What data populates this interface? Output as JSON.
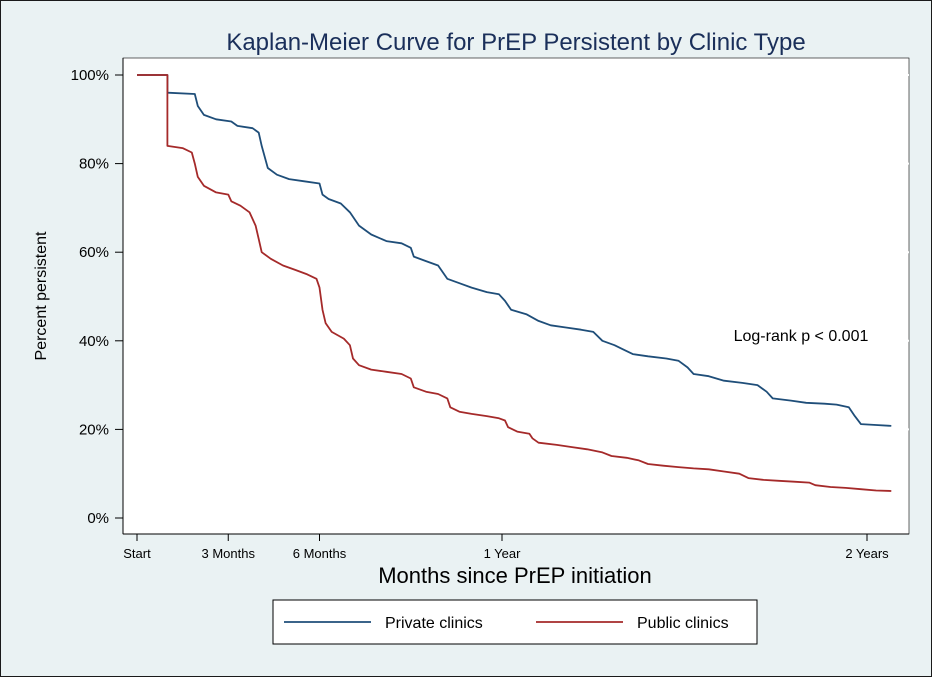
{
  "chart_data": {
    "type": "line",
    "title": "Kaplan-Meier Curve for PrEP Persistent by Clinic Type",
    "xlabel": "Months since PrEP initiation",
    "ylabel": "Percent persistent",
    "xlim": [
      0,
      25.5
    ],
    "ylim": [
      0,
      100
    ],
    "grid": true,
    "x_ticks": [
      {
        "value": 0,
        "label": "Start"
      },
      {
        "value": 3,
        "label": "3 Months"
      },
      {
        "value": 6,
        "label": "6 Months"
      },
      {
        "value": 12,
        "label": "1 Year"
      },
      {
        "value": 24,
        "label": "2 Years"
      }
    ],
    "y_ticks": [
      {
        "value": 0,
        "label": "0%"
      },
      {
        "value": 20,
        "label": "20%"
      },
      {
        "value": 40,
        "label": "40%"
      },
      {
        "value": 60,
        "label": "60%"
      },
      {
        "value": 80,
        "label": "80%"
      },
      {
        "value": 100,
        "label": "100%"
      }
    ],
    "annotation": "Log-rank p < 0.001",
    "legend_position": "bottom",
    "series": [
      {
        "name": "Private clinics",
        "color": "#1f4e79",
        "points": [
          [
            0,
            100
          ],
          [
            1,
            100
          ],
          [
            1,
            96
          ],
          [
            1.9,
            95.7
          ],
          [
            2.0,
            93
          ],
          [
            2.2,
            91
          ],
          [
            2.6,
            90
          ],
          [
            3.1,
            89.5
          ],
          [
            3.3,
            88.5
          ],
          [
            3.8,
            88
          ],
          [
            4.0,
            87
          ],
          [
            4.1,
            84
          ],
          [
            4.3,
            79
          ],
          [
            4.6,
            77.5
          ],
          [
            5.0,
            76.5
          ],
          [
            5.5,
            76
          ],
          [
            6.0,
            75.5
          ],
          [
            6.1,
            73
          ],
          [
            6.3,
            72
          ],
          [
            6.7,
            71
          ],
          [
            7.0,
            69
          ],
          [
            7.3,
            66
          ],
          [
            7.7,
            64
          ],
          [
            8.2,
            62.5
          ],
          [
            8.7,
            62
          ],
          [
            9.0,
            61
          ],
          [
            9.1,
            59
          ],
          [
            9.5,
            58
          ],
          [
            9.9,
            57
          ],
          [
            10.2,
            54
          ],
          [
            10.6,
            53
          ],
          [
            11.0,
            52
          ],
          [
            11.5,
            51
          ],
          [
            11.9,
            50.5
          ],
          [
            12.1,
            49
          ],
          [
            12.3,
            47
          ],
          [
            12.8,
            46
          ],
          [
            13.2,
            44.5
          ],
          [
            13.6,
            43.5
          ],
          [
            14.1,
            43
          ],
          [
            14.6,
            42.5
          ],
          [
            15.0,
            42
          ],
          [
            15.3,
            40
          ],
          [
            15.7,
            39
          ],
          [
            16.0,
            38
          ],
          [
            16.3,
            37
          ],
          [
            16.8,
            36.5
          ],
          [
            17.4,
            36
          ],
          [
            17.8,
            35.5
          ],
          [
            18.1,
            34
          ],
          [
            18.3,
            32.5
          ],
          [
            18.8,
            32
          ],
          [
            19.3,
            31
          ],
          [
            19.9,
            30.5
          ],
          [
            20.4,
            30
          ],
          [
            20.7,
            28.5
          ],
          [
            20.9,
            27
          ],
          [
            21.5,
            26.5
          ],
          [
            22.0,
            26
          ],
          [
            22.6,
            25.8
          ],
          [
            23.0,
            25.6
          ],
          [
            23.4,
            25
          ],
          [
            23.6,
            23
          ],
          [
            23.8,
            21.2
          ],
          [
            24.3,
            21
          ],
          [
            24.8,
            20.8
          ]
        ]
      },
      {
        "name": "Public clinics",
        "color": "#a52a2a",
        "points": [
          [
            0,
            100
          ],
          [
            1,
            100
          ],
          [
            1,
            84
          ],
          [
            1.5,
            83.5
          ],
          [
            1.8,
            82.5
          ],
          [
            1.9,
            80
          ],
          [
            2.0,
            77
          ],
          [
            2.2,
            75
          ],
          [
            2.6,
            73.5
          ],
          [
            3.0,
            73
          ],
          [
            3.1,
            71.5
          ],
          [
            3.4,
            70.5
          ],
          [
            3.7,
            69
          ],
          [
            3.9,
            66
          ],
          [
            4.0,
            63
          ],
          [
            4.1,
            60
          ],
          [
            4.4,
            58.5
          ],
          [
            4.8,
            57
          ],
          [
            5.2,
            56
          ],
          [
            5.6,
            55
          ],
          [
            5.9,
            54
          ],
          [
            6.0,
            52
          ],
          [
            6.1,
            47
          ],
          [
            6.2,
            44
          ],
          [
            6.4,
            42
          ],
          [
            6.8,
            40.5
          ],
          [
            7.0,
            39
          ],
          [
            7.1,
            36
          ],
          [
            7.3,
            34.5
          ],
          [
            7.7,
            33.5
          ],
          [
            8.2,
            33
          ],
          [
            8.7,
            32.5
          ],
          [
            9.0,
            31.5
          ],
          [
            9.1,
            29.5
          ],
          [
            9.5,
            28.5
          ],
          [
            9.9,
            28
          ],
          [
            10.2,
            27
          ],
          [
            10.3,
            25
          ],
          [
            10.6,
            24
          ],
          [
            11.0,
            23.5
          ],
          [
            11.5,
            23
          ],
          [
            11.9,
            22.5
          ],
          [
            12.1,
            22
          ],
          [
            12.2,
            20.5
          ],
          [
            12.5,
            19.5
          ],
          [
            12.9,
            19
          ],
          [
            13.0,
            18
          ],
          [
            13.2,
            17
          ],
          [
            13.8,
            16.5
          ],
          [
            14.3,
            16
          ],
          [
            14.8,
            15.5
          ],
          [
            15.3,
            14.8
          ],
          [
            15.6,
            14
          ],
          [
            16.1,
            13.6
          ],
          [
            16.5,
            13
          ],
          [
            16.8,
            12.2
          ],
          [
            17.3,
            11.8
          ],
          [
            17.8,
            11.5
          ],
          [
            18.3,
            11.2
          ],
          [
            18.8,
            11
          ],
          [
            19.3,
            10.5
          ],
          [
            19.8,
            10
          ],
          [
            20.1,
            9
          ],
          [
            20.6,
            8.6
          ],
          [
            21.1,
            8.4
          ],
          [
            21.6,
            8.2
          ],
          [
            22.1,
            8
          ],
          [
            22.3,
            7.4
          ],
          [
            22.8,
            7
          ],
          [
            23.3,
            6.8
          ],
          [
            23.8,
            6.5
          ],
          [
            24.3,
            6.2
          ],
          [
            24.8,
            6.1
          ]
        ]
      }
    ]
  }
}
